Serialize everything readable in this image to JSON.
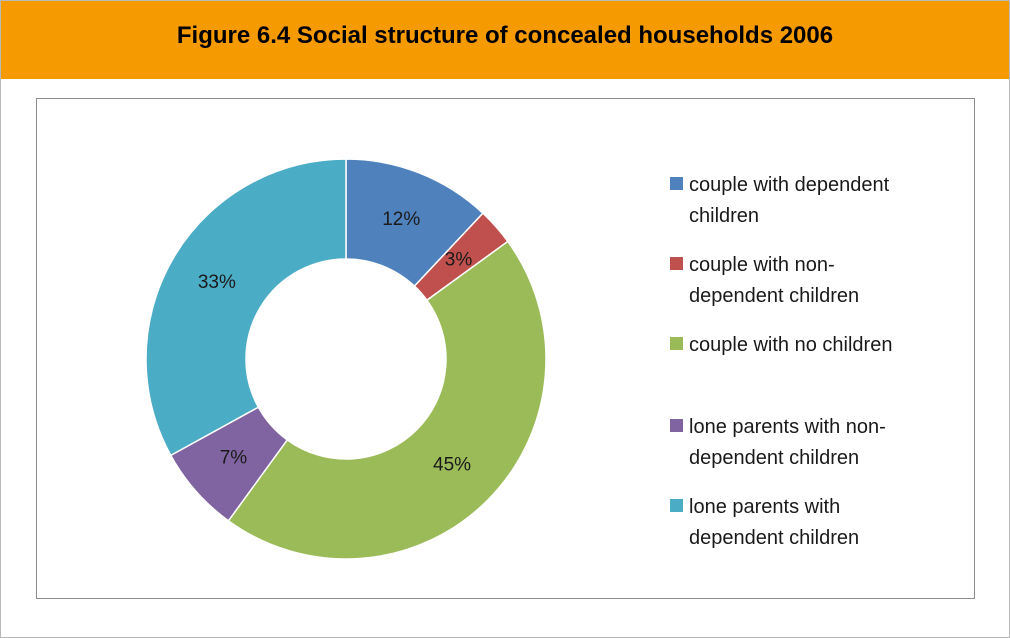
{
  "title": "Figure 6.4 Social structure of concealed households 2006",
  "chart_data": {
    "type": "pie",
    "variant": "donut",
    "title": "Figure 6.4 Social structure of concealed households 2006",
    "legend_position": "right",
    "slices": [
      {
        "label": "couple with dependent children",
        "legend_lines": [
          "couple with dependent",
          "children"
        ],
        "value": 12,
        "display": "12%",
        "color": "#4f81bd"
      },
      {
        "label": "couple with non-dependent children",
        "legend_lines": [
          "couple with non-",
          "dependent children"
        ],
        "value": 3,
        "display": "3%",
        "color": "#c0504d"
      },
      {
        "label": "couple with no children",
        "legend_lines": [
          "couple with no children"
        ],
        "value": 45,
        "display": "45%",
        "color": "#9bbb59"
      },
      {
        "label": "lone parents with non-dependent children",
        "legend_lines": [
          "lone parents with non-",
          "dependent children"
        ],
        "value": 7,
        "display": "7%",
        "color": "#8064a2"
      },
      {
        "label": "lone parents with dependent children",
        "legend_lines": [
          "lone parents with",
          "dependent children"
        ],
        "value": 33,
        "display": "33%",
        "color": "#4bacc6"
      }
    ]
  }
}
